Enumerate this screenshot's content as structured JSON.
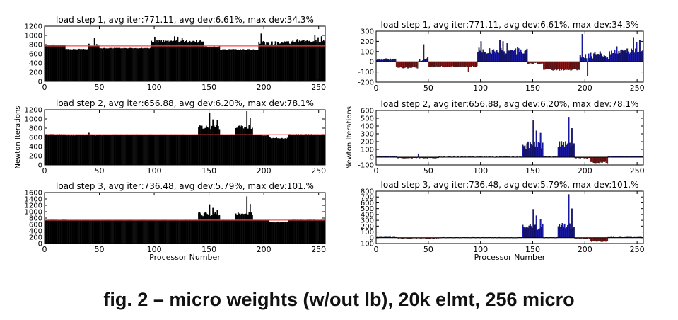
{
  "caption": "fig. 2 – micro weights (w/out lb), 20k elmt, 256 micro",
  "colors": {
    "bar": "#000000",
    "avg_line": "#ff4444",
    "pos_dev": "#1a1aa0",
    "neg_dev": "#8b1a1a"
  },
  "chart_data": [
    {
      "type": "bar",
      "title": "load step 1, avg iter:771.11, avg dev:6.61%, max dev:34.3%",
      "xlabel": "",
      "ylabel": "",
      "xlim": [
        0,
        256
      ],
      "ylim": [
        0,
        1200
      ],
      "xticks": [
        0,
        50,
        100,
        150,
        200,
        250
      ],
      "yticks": [
        0,
        200,
        400,
        600,
        800,
        1000,
        1200
      ],
      "avg": 771.11,
      "segments": [
        [
          0,
          19,
          790,
          20
        ],
        [
          19,
          40,
          700,
          15
        ],
        [
          40,
          50,
          780,
          60
        ],
        [
          50,
          97,
          720,
          15
        ],
        [
          97,
          145,
          860,
          70
        ],
        [
          145,
          160,
          750,
          20
        ],
        [
          160,
          195,
          690,
          20
        ],
        [
          195,
          225,
          820,
          80
        ],
        [
          225,
          256,
          860,
          60
        ]
      ],
      "spikes": [
        [
          45,
          940
        ],
        [
          100,
          970
        ],
        [
          118,
          980
        ],
        [
          121,
          970
        ],
        [
          125,
          950
        ],
        [
          197,
          1040
        ],
        [
          230,
          920
        ],
        [
          246,
          1010
        ],
        [
          249,
          960
        ],
        [
          252,
          980
        ]
      ]
    },
    {
      "type": "bar",
      "title": "load step 2, avg iter:656.88, avg dev:6.20%, max dev:78.1%",
      "xlabel": "",
      "ylabel": "Newton Iterations",
      "xlim": [
        0,
        256
      ],
      "ylim": [
        0,
        1200
      ],
      "xticks": [
        0,
        50,
        100,
        150,
        200,
        250
      ],
      "yticks": [
        0,
        200,
        400,
        600,
        800,
        1000,
        1200
      ],
      "avg": 656.88,
      "segments": [
        [
          0,
          20,
          665,
          12
        ],
        [
          20,
          60,
          645,
          12
        ],
        [
          60,
          140,
          660,
          10
        ],
        [
          140,
          160,
          800,
          110
        ],
        [
          160,
          174,
          660,
          10
        ],
        [
          174,
          190,
          810,
          90
        ],
        [
          190,
          205,
          645,
          12
        ],
        [
          205,
          222,
          580,
          30
        ],
        [
          222,
          256,
          665,
          12
        ]
      ],
      "spikes": [
        [
          150,
          1130
        ],
        [
          153,
          990
        ],
        [
          157,
          970
        ],
        [
          184,
          1170
        ],
        [
          187,
          1030
        ],
        [
          40,
          700
        ]
      ]
    },
    {
      "type": "bar",
      "title": "load step 3, avg iter:736.48, avg dev:5.79%, max dev:101.%",
      "xlabel": "Processor Number",
      "ylabel": "",
      "xlim": [
        0,
        256
      ],
      "ylim": [
        0,
        1600
      ],
      "xticks": [
        0,
        50,
        100,
        150,
        200,
        250
      ],
      "yticks": [
        0,
        200,
        400,
        600,
        800,
        1000,
        1200,
        1400,
        1600
      ],
      "avg": 736.48,
      "segments": [
        [
          0,
          20,
          745,
          12
        ],
        [
          20,
          60,
          725,
          12
        ],
        [
          60,
          140,
          740,
          10
        ],
        [
          140,
          160,
          900,
          130
        ],
        [
          160,
          174,
          740,
          10
        ],
        [
          174,
          190,
          920,
          110
        ],
        [
          190,
          205,
          725,
          12
        ],
        [
          205,
          222,
          670,
          30
        ],
        [
          222,
          256,
          745,
          12
        ]
      ],
      "spikes": [
        [
          150,
          1230
        ],
        [
          153,
          1120
        ],
        [
          157,
          1060
        ],
        [
          184,
          1480
        ],
        [
          187,
          1240
        ]
      ]
    },
    {
      "type": "bar",
      "title": "load step 1, avg iter:771.11, avg dev:6.61%, max dev:34.3%",
      "xlabel": "",
      "ylabel": "",
      "xlim": [
        0,
        256
      ],
      "ylim": [
        -200,
        300
      ],
      "xticks": [
        0,
        50,
        100,
        150,
        200,
        250
      ],
      "yticks": [
        -200,
        -100,
        0,
        100,
        200,
        300
      ],
      "avg": 0,
      "segments": [
        [
          0,
          19,
          20,
          15
        ],
        [
          19,
          40,
          -60,
          15
        ],
        [
          40,
          50,
          15,
          50
        ],
        [
          50,
          97,
          -50,
          15
        ],
        [
          97,
          145,
          90,
          70
        ],
        [
          145,
          160,
          -20,
          20
        ],
        [
          160,
          195,
          -80,
          20
        ],
        [
          195,
          225,
          50,
          80
        ],
        [
          225,
          256,
          90,
          60
        ]
      ],
      "spikes": [
        [
          45,
          170
        ],
        [
          100,
          200
        ],
        [
          118,
          210
        ],
        [
          121,
          200
        ],
        [
          125,
          180
        ],
        [
          197,
          270
        ],
        [
          230,
          150
        ],
        [
          246,
          240
        ],
        [
          249,
          190
        ],
        [
          252,
          210
        ],
        [
          88,
          -100
        ],
        [
          202,
          -140
        ]
      ]
    },
    {
      "type": "bar",
      "title": "load step 2, avg iter:656.88, avg dev:6.20%, max dev:78.1%",
      "xlabel": "",
      "ylabel": "Newton Iterations",
      "xlim": [
        0,
        256
      ],
      "ylim": [
        -100,
        600
      ],
      "xticks": [
        0,
        50,
        100,
        150,
        200,
        250
      ],
      "yticks": [
        -100,
        0,
        100,
        200,
        300,
        400,
        500,
        600
      ],
      "avg": 0,
      "segments": [
        [
          0,
          20,
          8,
          10
        ],
        [
          20,
          60,
          -12,
          10
        ],
        [
          60,
          140,
          3,
          8
        ],
        [
          140,
          160,
          140,
          110
        ],
        [
          160,
          174,
          3,
          8
        ],
        [
          174,
          190,
          150,
          90
        ],
        [
          190,
          205,
          -12,
          10
        ],
        [
          205,
          222,
          -70,
          25
        ],
        [
          222,
          256,
          8,
          10
        ]
      ],
      "spikes": [
        [
          150,
          470
        ],
        [
          153,
          340
        ],
        [
          157,
          310
        ],
        [
          184,
          515
        ],
        [
          187,
          370
        ],
        [
          40,
          45
        ]
      ]
    },
    {
      "type": "bar",
      "title": "load step 3, avg iter:736.48, avg dev:5.79%, max dev:101.%",
      "xlabel": "Processor Number",
      "ylabel": "",
      "xlim": [
        0,
        256
      ],
      "ylim": [
        -100,
        800
      ],
      "xticks": [
        0,
        50,
        100,
        150,
        200,
        250
      ],
      "yticks": [
        -100,
        0,
        100,
        200,
        300,
        400,
        500,
        600,
        700,
        800
      ],
      "avg": 0,
      "segments": [
        [
          0,
          20,
          8,
          10
        ],
        [
          20,
          60,
          -12,
          10
        ],
        [
          60,
          140,
          3,
          8
        ],
        [
          140,
          160,
          160,
          130
        ],
        [
          160,
          174,
          3,
          8
        ],
        [
          174,
          190,
          180,
          110
        ],
        [
          190,
          205,
          -12,
          10
        ],
        [
          205,
          222,
          -65,
          25
        ],
        [
          222,
          256,
          8,
          10
        ]
      ],
      "spikes": [
        [
          150,
          490
        ],
        [
          153,
          380
        ],
        [
          157,
          320
        ],
        [
          184,
          745
        ],
        [
          187,
          500
        ]
      ]
    }
  ]
}
